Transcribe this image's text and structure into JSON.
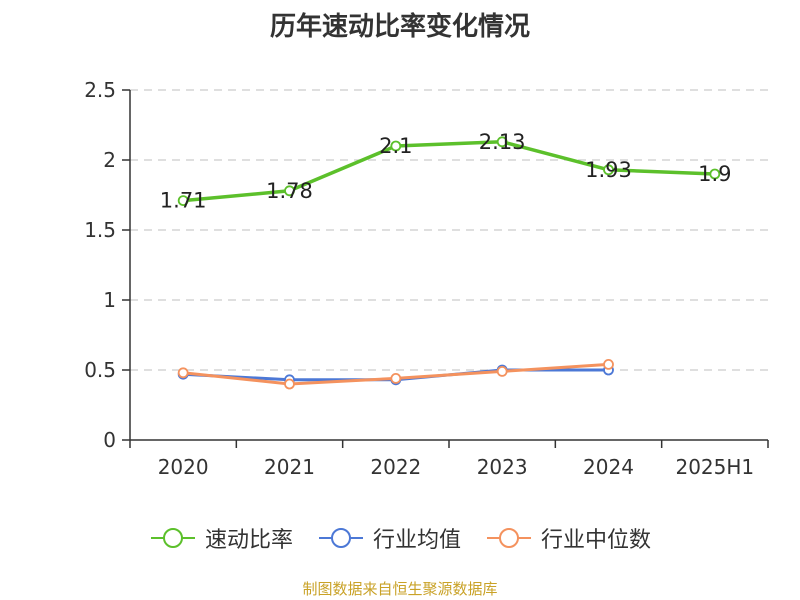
{
  "title": "历年速动比率变化情况",
  "source": "制图数据来自恒生聚源数据库",
  "chart_data": {
    "type": "line",
    "categories": [
      "2020",
      "2021",
      "2022",
      "2023",
      "2024",
      "2025H1"
    ],
    "ylim": [
      0,
      2.5
    ],
    "yticks": [
      "0",
      "0.5",
      "1",
      "1.5",
      "2",
      "2.5"
    ],
    "grid": true,
    "legend_position": "bottom",
    "series": [
      {
        "name": "速动比率",
        "color": "#5cc02b",
        "values": [
          1.71,
          1.78,
          2.1,
          2.13,
          1.93,
          1.9
        ],
        "labels": [
          "1.71",
          "1.78",
          "2.1",
          "2.13",
          "1.93",
          "1.9"
        ]
      },
      {
        "name": "行业均值",
        "color": "#4c78d6",
        "values": [
          0.47,
          0.43,
          0.43,
          0.5,
          0.5,
          null
        ]
      },
      {
        "name": "行业中位数",
        "color": "#f4925e",
        "values": [
          0.48,
          0.4,
          0.44,
          0.49,
          0.54,
          null
        ]
      }
    ]
  }
}
